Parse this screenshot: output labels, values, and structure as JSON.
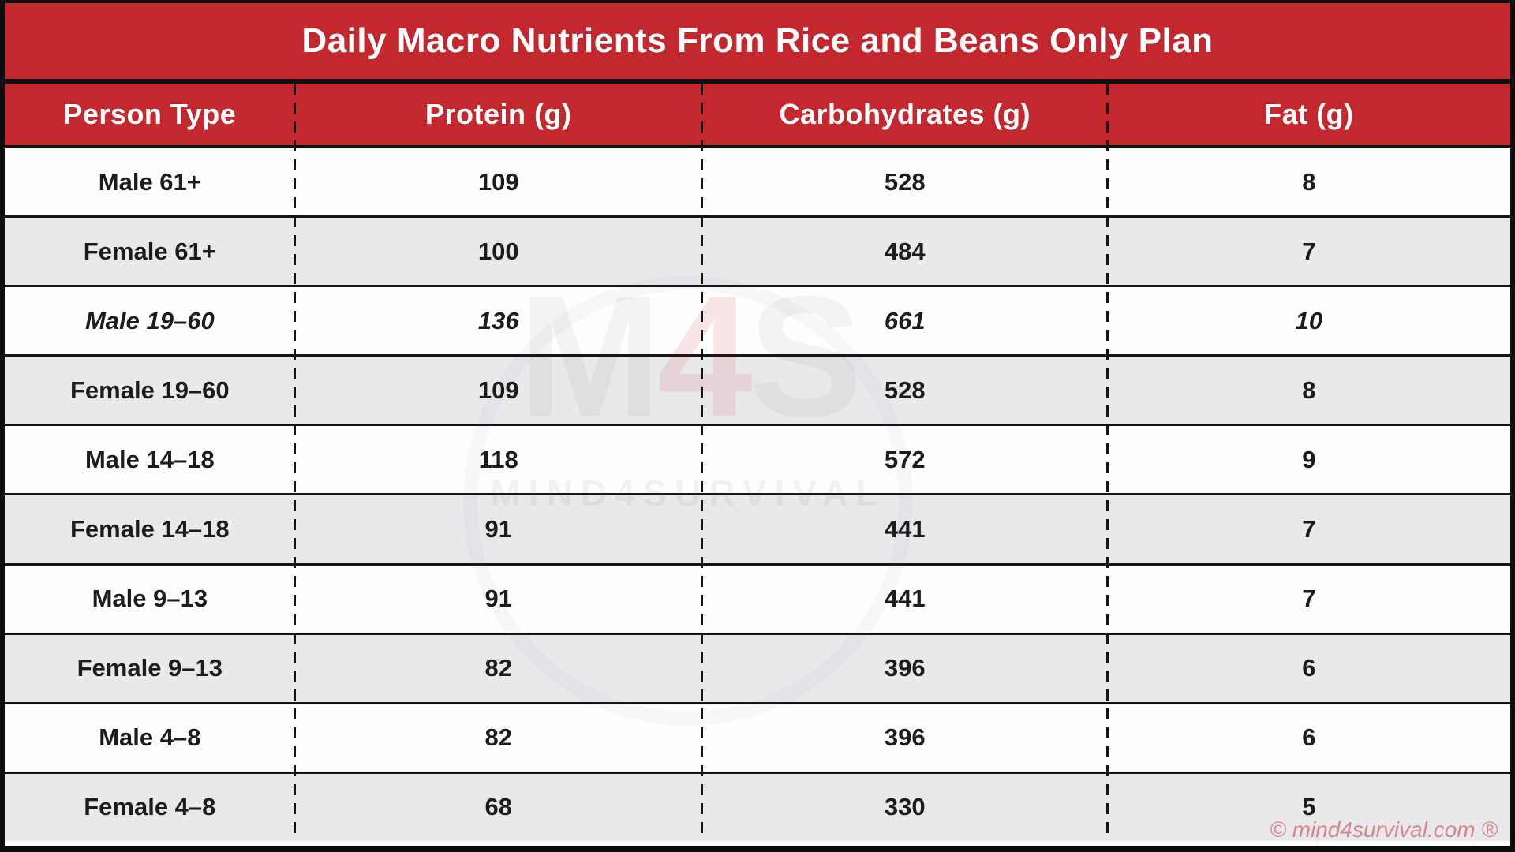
{
  "chart_data": {
    "type": "table",
    "title": "Daily Macro Nutrients From Rice and Beans Only Plan",
    "columns": [
      "Person Type",
      "Protein (g)",
      "Carbohydrates (g)",
      "Fat (g)"
    ],
    "rows": [
      [
        "Male 61+",
        "109",
        "528",
        "8"
      ],
      [
        "Female 61+",
        "100",
        "484",
        "7"
      ],
      [
        "Male 19–60",
        "136",
        "661",
        "10"
      ],
      [
        "Female 19–60",
        "109",
        "528",
        "8"
      ],
      [
        "Male 14–18",
        "118",
        "572",
        "9"
      ],
      [
        "Female 14–18",
        "91",
        "441",
        "7"
      ],
      [
        "Male 9–13",
        "91",
        "441",
        "7"
      ],
      [
        "Female 9–13",
        "82",
        "396",
        "6"
      ],
      [
        "Male 4–8",
        "82",
        "396",
        "6"
      ],
      [
        "Female 4–8",
        "68",
        "330",
        "5"
      ]
    ],
    "emphasized_row_index": 2,
    "layout": {
      "zebra_striping": true,
      "column_separators": "black dashed vertical lines",
      "row_separators": "black solid lines",
      "header_style": "white bold text on red"
    }
  },
  "watermark": {
    "logo_m": "M",
    "logo_4": "4",
    "logo_s": "S",
    "subtitle": "MIND4SURVIVAL"
  },
  "footer": {
    "copyright": "© mind4survival.com ®"
  },
  "colors": {
    "header_red": "#c3282f",
    "row": "#fefefe",
    "row_alt": "#e9e9ec",
    "border_black": "#0e0e0e",
    "copyright_pink": "#d5868f",
    "text_dark": "#1c1c1c"
  }
}
